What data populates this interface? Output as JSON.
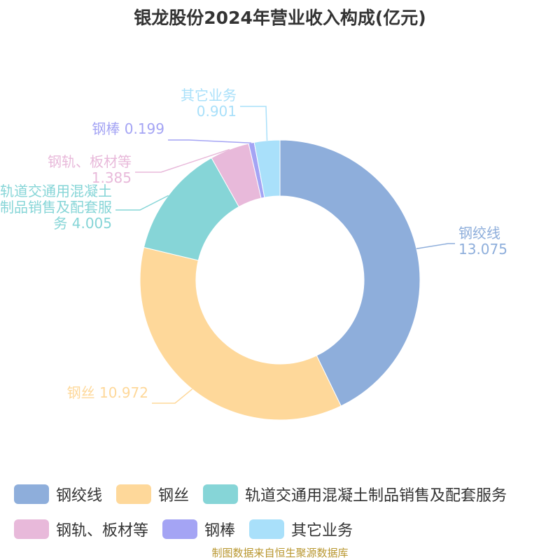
{
  "chart_data": {
    "type": "donut",
    "title": "银龙股份2024年营业收入构成(亿元)",
    "categories": [
      "钢绞线",
      "钢丝",
      "轨道交通用混凝土制品销售及配套服务",
      "钢轨、板材等",
      "钢棒",
      "其它业务"
    ],
    "values": [
      13.075,
      10.972,
      4.005,
      1.385,
      0.199,
      0.901
    ],
    "colors": [
      "#8eaedb",
      "#fed89a",
      "#86d5d7",
      "#e8b9da",
      "#a4a4f4",
      "#a9e0fa"
    ],
    "legend": "bottom",
    "source": "制图数据来自恒生聚源数据库"
  }
}
